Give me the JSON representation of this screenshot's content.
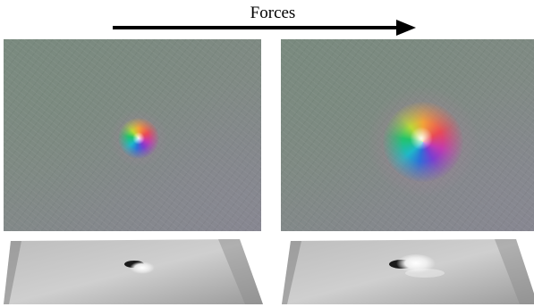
{
  "title": "Forces",
  "colors": {
    "arrow": "#000000",
    "map_background": "#808a84",
    "surface_light": "#c9c9c9",
    "surface_dark": "#6e6e6e"
  },
  "panels": [
    {
      "name": "force-map-low",
      "blob_scale": 1.0
    },
    {
      "name": "force-map-high",
      "blob_scale": 1.8
    }
  ]
}
